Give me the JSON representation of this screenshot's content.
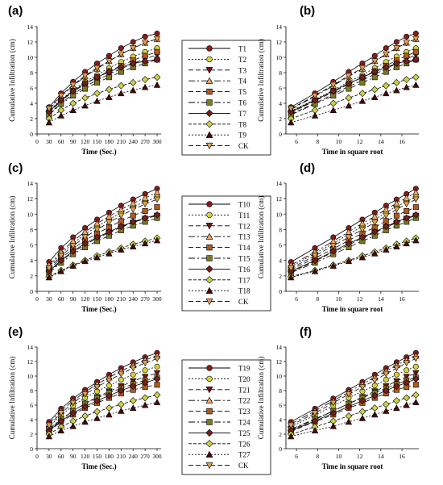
{
  "chart_data": [
    {
      "panel": "(a)",
      "type": "line",
      "xlabel": "Time (Sec.)",
      "ylabel": "Cumulative Infiltration (cm)",
      "x": [
        30,
        60,
        90,
        120,
        150,
        180,
        210,
        240,
        270,
        300
      ],
      "x_ticks": [
        0,
        30,
        60,
        90,
        120,
        150,
        180,
        210,
        240,
        270,
        300
      ],
      "xlim": [
        0,
        310
      ],
      "ylim": [
        0,
        14
      ],
      "y_ticks": [
        0,
        2,
        4,
        6,
        8,
        10,
        12,
        14
      ],
      "series": [
        {
          "name": "T1",
          "values": [
            3.5,
            5.3,
            6.8,
            8.1,
            9.2,
            10.2,
            11.2,
            12.0,
            12.7,
            13.1
          ]
        },
        {
          "name": "T2",
          "values": [
            3.0,
            4.5,
            5.7,
            6.8,
            7.7,
            8.6,
            9.4,
            10.1,
            10.7,
            11.2
          ]
        },
        {
          "name": "T3",
          "values": [
            2.6,
            4.0,
            5.2,
            6.2,
            7.0,
            7.8,
            8.5,
            9.2,
            9.8,
            10.3
          ]
        },
        {
          "name": "T4",
          "values": [
            3.2,
            4.9,
            6.3,
            7.5,
            8.5,
            9.5,
            10.4,
            11.2,
            11.9,
            12.4
          ]
        },
        {
          "name": "T5",
          "values": [
            2.8,
            4.3,
            5.5,
            6.5,
            7.4,
            8.2,
            8.9,
            9.6,
            10.2,
            10.7
          ]
        },
        {
          "name": "T6",
          "values": [
            2.5,
            3.9,
            5.0,
            5.9,
            6.7,
            7.4,
            8.1,
            8.7,
            9.2,
            9.7
          ]
        },
        {
          "name": "T7",
          "values": [
            2.9,
            4.4,
            5.6,
            6.6,
            7.4,
            8.1,
            8.7,
            9.2,
            9.5,
            9.7
          ]
        },
        {
          "name": "T8",
          "values": [
            2.0,
            3.1,
            4.0,
            4.7,
            5.3,
            5.8,
            6.3,
            6.7,
            7.1,
            7.4
          ]
        },
        {
          "name": "T9",
          "values": [
            1.5,
            2.4,
            3.1,
            3.7,
            4.3,
            4.8,
            5.3,
            5.7,
            6.1,
            6.4
          ]
        },
        {
          "name": "CK",
          "values": [
            3.3,
            5.0,
            6.4,
            7.6,
            8.6,
            9.5,
            10.4,
            11.2,
            11.9,
            12.4
          ]
        }
      ]
    },
    {
      "panel": "(b)",
      "type": "line",
      "xlabel": "Time in square root",
      "ylabel": "Cumulative Infiltration (cm)",
      "x": [
        5.48,
        7.75,
        9.49,
        10.95,
        12.25,
        13.42,
        14.49,
        15.49,
        16.43,
        17.32
      ],
      "x_ticks": [
        6,
        8,
        10,
        12,
        14,
        16
      ],
      "xlim": [
        5,
        17.6
      ],
      "ylim": [
        0,
        14
      ],
      "y_ticks": [
        0,
        2,
        4,
        6,
        8,
        10,
        12,
        14
      ],
      "series": [
        {
          "name": "T1",
          "values": [
            3.5,
            5.3,
            6.8,
            8.1,
            9.2,
            10.2,
            11.2,
            12.0,
            12.7,
            13.1
          ]
        },
        {
          "name": "T2",
          "values": [
            3.0,
            4.5,
            5.7,
            6.8,
            7.7,
            8.6,
            9.4,
            10.1,
            10.7,
            11.2
          ]
        },
        {
          "name": "T3",
          "values": [
            2.6,
            4.0,
            5.2,
            6.2,
            7.0,
            7.8,
            8.5,
            9.2,
            9.8,
            10.3
          ]
        },
        {
          "name": "T4",
          "values": [
            3.2,
            4.9,
            6.3,
            7.5,
            8.5,
            9.5,
            10.4,
            11.2,
            11.9,
            12.4
          ]
        },
        {
          "name": "T5",
          "values": [
            2.8,
            4.3,
            5.5,
            6.5,
            7.4,
            8.2,
            8.9,
            9.6,
            10.2,
            10.7
          ]
        },
        {
          "name": "T6",
          "values": [
            2.5,
            3.9,
            5.0,
            5.9,
            6.7,
            7.4,
            8.1,
            8.7,
            9.2,
            9.7
          ]
        },
        {
          "name": "T7",
          "values": [
            2.9,
            4.4,
            5.6,
            6.6,
            7.4,
            8.1,
            8.7,
            9.2,
            9.5,
            9.7
          ]
        },
        {
          "name": "T8",
          "values": [
            2.0,
            3.1,
            4.0,
            4.7,
            5.3,
            5.8,
            6.3,
            6.7,
            7.1,
            7.4
          ]
        },
        {
          "name": "T9",
          "values": [
            1.5,
            2.4,
            3.1,
            3.7,
            4.3,
            4.8,
            5.3,
            5.7,
            6.1,
            6.4
          ]
        },
        {
          "name": "CK",
          "values": [
            3.3,
            5.0,
            6.4,
            7.6,
            8.6,
            9.5,
            10.4,
            11.2,
            11.9,
            12.4
          ]
        }
      ]
    },
    {
      "panel": "(c)",
      "type": "line",
      "xlabel": "Time (Sec.)",
      "ylabel": "Cumulative Infiltration (cm)",
      "x": [
        30,
        60,
        90,
        120,
        150,
        180,
        210,
        240,
        270,
        300
      ],
      "x_ticks": [
        0,
        30,
        60,
        90,
        120,
        150,
        180,
        210,
        240,
        270,
        300
      ],
      "xlim": [
        0,
        310
      ],
      "ylim": [
        0,
        14
      ],
      "y_ticks": [
        0,
        2,
        4,
        6,
        8,
        10,
        12,
        14
      ],
      "series": [
        {
          "name": "T10",
          "values": [
            3.8,
            5.6,
            7.0,
            8.2,
            9.3,
            10.2,
            11.1,
            11.9,
            12.6,
            13.3
          ]
        },
        {
          "name": "T11",
          "values": [
            3.2,
            4.9,
            6.2,
            7.4,
            8.4,
            9.3,
            10.2,
            11.0,
            11.6,
            12.2
          ]
        },
        {
          "name": "T12",
          "values": [
            2.5,
            3.9,
            5.1,
            6.0,
            6.9,
            7.6,
            8.3,
            8.9,
            9.4,
            9.8
          ]
        },
        {
          "name": "T13",
          "values": [
            3.4,
            5.1,
            6.5,
            7.7,
            8.8,
            9.7,
            10.6,
            11.4,
            12.1,
            12.8
          ]
        },
        {
          "name": "T14",
          "values": [
            2.8,
            4.3,
            5.5,
            6.6,
            7.5,
            8.3,
            9.1,
            9.8,
            10.4,
            10.9
          ]
        },
        {
          "name": "T15",
          "values": [
            2.4,
            3.7,
            4.8,
            5.7,
            6.5,
            7.2,
            7.9,
            8.5,
            9.0,
            9.5
          ]
        },
        {
          "name": "T16",
          "values": [
            2.6,
            4.0,
            5.2,
            6.2,
            7.0,
            7.7,
            8.4,
            9.0,
            9.5,
            9.9
          ]
        },
        {
          "name": "T17",
          "values": [
            1.9,
            2.7,
            3.4,
            4.0,
            4.6,
            5.1,
            5.6,
            6.1,
            6.5,
            6.9
          ]
        },
        {
          "name": "T18",
          "values": [
            1.8,
            2.6,
            3.3,
            3.9,
            4.4,
            4.9,
            5.4,
            5.8,
            6.2,
            6.6
          ]
        },
        {
          "name": "CK",
          "values": [
            3.0,
            4.6,
            5.9,
            7.0,
            8.0,
            8.9,
            9.8,
            10.6,
            11.3,
            11.9
          ]
        }
      ]
    },
    {
      "panel": "(d)",
      "type": "line",
      "xlabel": "Time in square root",
      "ylabel": "Cumulative Infiltration (cm)",
      "x": [
        5.48,
        7.75,
        9.49,
        10.95,
        12.25,
        13.42,
        14.49,
        15.49,
        16.43,
        17.32
      ],
      "x_ticks": [
        6,
        8,
        10,
        12,
        14,
        16
      ],
      "xlim": [
        5,
        17.6
      ],
      "ylim": [
        0,
        14
      ],
      "y_ticks": [
        0,
        2,
        4,
        6,
        8,
        10,
        12,
        14
      ],
      "series": [
        {
          "name": "T10",
          "values": [
            3.8,
            5.6,
            7.0,
            8.2,
            9.3,
            10.2,
            11.1,
            11.9,
            12.6,
            13.3
          ]
        },
        {
          "name": "T11",
          "values": [
            3.2,
            4.9,
            6.2,
            7.4,
            8.4,
            9.3,
            10.2,
            11.0,
            11.6,
            12.2
          ]
        },
        {
          "name": "T12",
          "values": [
            2.5,
            3.9,
            5.1,
            6.0,
            6.9,
            7.6,
            8.3,
            8.9,
            9.4,
            9.8
          ]
        },
        {
          "name": "T13",
          "values": [
            3.4,
            5.1,
            6.5,
            7.7,
            8.8,
            9.7,
            10.6,
            11.4,
            12.1,
            12.8
          ]
        },
        {
          "name": "T14",
          "values": [
            2.8,
            4.3,
            5.5,
            6.6,
            7.5,
            8.3,
            9.1,
            9.8,
            10.4,
            10.9
          ]
        },
        {
          "name": "T15",
          "values": [
            2.4,
            3.7,
            4.8,
            5.7,
            6.5,
            7.2,
            7.9,
            8.5,
            9.0,
            9.5
          ]
        },
        {
          "name": "T16",
          "values": [
            2.6,
            4.0,
            5.2,
            6.2,
            7.0,
            7.7,
            8.4,
            9.0,
            9.5,
            9.9
          ]
        },
        {
          "name": "T17",
          "values": [
            1.9,
            2.7,
            3.4,
            4.0,
            4.6,
            5.1,
            5.6,
            6.1,
            6.5,
            6.9
          ]
        },
        {
          "name": "T18",
          "values": [
            1.8,
            2.6,
            3.3,
            3.9,
            4.4,
            4.9,
            5.4,
            5.8,
            6.2,
            6.6
          ]
        },
        {
          "name": "CK",
          "values": [
            3.0,
            4.6,
            5.9,
            7.0,
            8.0,
            8.9,
            9.8,
            10.6,
            11.3,
            11.9
          ]
        }
      ]
    },
    {
      "panel": "(e)",
      "type": "line",
      "xlabel": "Time (Sec.)",
      "ylabel": "Cumulative Infiltration (cm)",
      "x": [
        30,
        60,
        90,
        120,
        150,
        180,
        210,
        240,
        270,
        300
      ],
      "x_ticks": [
        0,
        30,
        60,
        90,
        120,
        150,
        180,
        210,
        240,
        270,
        300
      ],
      "xlim": [
        0,
        310
      ],
      "ylim": [
        0,
        14
      ],
      "y_ticks": [
        0,
        2,
        4,
        6,
        8,
        10,
        12,
        14
      ],
      "series": [
        {
          "name": "T19",
          "values": [
            3.7,
            5.5,
            6.9,
            8.1,
            9.2,
            10.2,
            11.1,
            11.9,
            12.6,
            13.2
          ]
        },
        {
          "name": "T20",
          "values": [
            3.0,
            4.6,
            5.9,
            7.0,
            7.9,
            8.7,
            9.5,
            10.2,
            10.8,
            11.3
          ]
        },
        {
          "name": "T21",
          "values": [
            2.6,
            4.0,
            5.2,
            6.2,
            7.1,
            7.9,
            8.6,
            9.3,
            9.9,
            10.4
          ]
        },
        {
          "name": "T22",
          "values": [
            3.4,
            5.2,
            6.6,
            7.8,
            8.9,
            9.8,
            10.7,
            11.5,
            12.2,
            12.8
          ]
        },
        {
          "name": "T23",
          "values": [
            2.4,
            3.7,
            4.7,
            5.6,
            6.3,
            7.0,
            7.6,
            8.1,
            8.5,
            8.8
          ]
        },
        {
          "name": "T24",
          "values": [
            2.7,
            4.1,
            5.2,
            6.2,
            7.0,
            7.7,
            8.3,
            8.9,
            9.4,
            9.8
          ]
        },
        {
          "name": "T25",
          "values": [
            2.5,
            3.8,
            4.9,
            5.8,
            6.6,
            7.3,
            8.0,
            8.6,
            9.1,
            9.6
          ]
        },
        {
          "name": "T26",
          "values": [
            2.0,
            3.0,
            3.8,
            4.5,
            5.1,
            5.6,
            6.1,
            6.6,
            7.0,
            7.4
          ]
        },
        {
          "name": "T27",
          "values": [
            1.7,
            2.5,
            3.1,
            3.7,
            4.2,
            4.7,
            5.2,
            5.6,
            6.0,
            6.4
          ]
        },
        {
          "name": "CK",
          "values": [
            3.2,
            4.9,
            6.3,
            7.5,
            8.5,
            9.4,
            10.3,
            11.1,
            11.8,
            12.4
          ]
        }
      ]
    },
    {
      "panel": "(f)",
      "type": "line",
      "xlabel": "Time in square root",
      "ylabel": "Cumulative Infiltration (cm)",
      "x": [
        5.48,
        7.75,
        9.49,
        10.95,
        12.25,
        13.42,
        14.49,
        15.49,
        16.43,
        17.32
      ],
      "x_ticks": [
        6,
        8,
        10,
        12,
        14,
        16
      ],
      "xlim": [
        5,
        17.6
      ],
      "ylim": [
        0,
        14
      ],
      "y_ticks": [
        0,
        2,
        4,
        6,
        8,
        10,
        12,
        14
      ],
      "series": [
        {
          "name": "T19",
          "values": [
            3.7,
            5.5,
            6.9,
            8.1,
            9.2,
            10.2,
            11.1,
            11.9,
            12.6,
            13.2
          ]
        },
        {
          "name": "T20",
          "values": [
            3.0,
            4.6,
            5.9,
            7.0,
            7.9,
            8.7,
            9.5,
            10.2,
            10.8,
            11.3
          ]
        },
        {
          "name": "T21",
          "values": [
            2.6,
            4.0,
            5.2,
            6.2,
            7.1,
            7.9,
            8.6,
            9.3,
            9.9,
            10.4
          ]
        },
        {
          "name": "T22",
          "values": [
            3.4,
            5.2,
            6.6,
            7.8,
            8.9,
            9.8,
            10.7,
            11.5,
            12.2,
            12.8
          ]
        },
        {
          "name": "T23",
          "values": [
            2.4,
            3.7,
            4.7,
            5.6,
            6.3,
            7.0,
            7.6,
            8.1,
            8.5,
            8.8
          ]
        },
        {
          "name": "T24",
          "values": [
            2.7,
            4.1,
            5.2,
            6.2,
            7.0,
            7.7,
            8.3,
            8.9,
            9.4,
            9.8
          ]
        },
        {
          "name": "T25",
          "values": [
            2.5,
            3.8,
            4.9,
            5.8,
            6.6,
            7.3,
            8.0,
            8.6,
            9.1,
            9.6
          ]
        },
        {
          "name": "T26",
          "values": [
            2.0,
            3.0,
            3.8,
            4.5,
            5.1,
            5.6,
            6.1,
            6.6,
            7.0,
            7.4
          ]
        },
        {
          "name": "T27",
          "values": [
            1.7,
            2.5,
            3.1,
            3.7,
            4.2,
            4.7,
            5.2,
            5.6,
            6.0,
            6.4
          ]
        },
        {
          "name": "CK",
          "values": [
            3.2,
            4.9,
            6.3,
            7.5,
            8.5,
            9.4,
            10.3,
            11.1,
            11.8,
            12.4
          ]
        }
      ]
    }
  ],
  "series_styles": [
    {
      "marker": "circle",
      "fill": "#8b1a1a",
      "dash": ""
    },
    {
      "marker": "circle",
      "fill": "#d2d43a",
      "dash": "2,2"
    },
    {
      "marker": "tri-down",
      "fill": "#7a1010",
      "dash": "6,3"
    },
    {
      "marker": "tri-up",
      "fill": "#f0a868",
      "dash": "8,3,2,3"
    },
    {
      "marker": "square",
      "fill": "#b05a1e",
      "dash": "6,3"
    },
    {
      "marker": "square",
      "fill": "#7a7a20",
      "dash": "8,3,2,3"
    },
    {
      "marker": "diamond",
      "fill": "#7a1c1c",
      "dash": ""
    },
    {
      "marker": "diamond",
      "fill": "#c8d24a",
      "dash": "4,2"
    },
    {
      "marker": "tri-up",
      "fill": "#4a0808",
      "dash": "2,2"
    },
    {
      "marker": "tri-down",
      "fill": "#e0a050",
      "dash": "6,3"
    }
  ]
}
